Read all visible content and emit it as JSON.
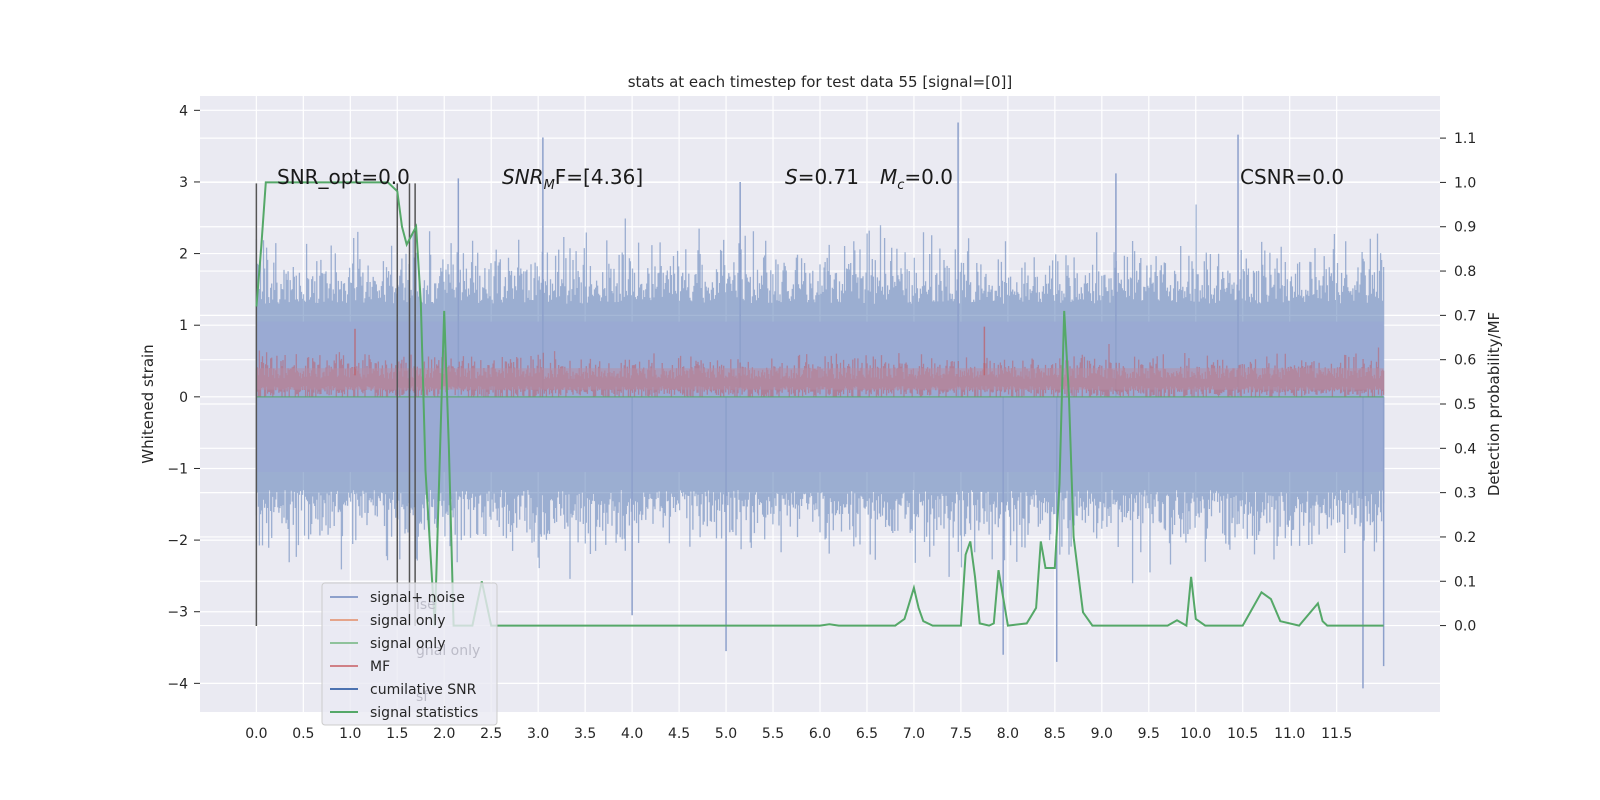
{
  "chart_data": {
    "type": "line",
    "title": "stats at each timestep for test data 55 [signal=[0]]",
    "ylabel": "Whitened strain",
    "y2label": "Detection probability/MF",
    "xlim": [
      -0.6,
      12.6
    ],
    "ylim": [
      -4.4,
      4.2
    ],
    "y2lim": [
      -0.195,
      1.195
    ],
    "x_ticks": [
      "0.0",
      "0.5",
      "1.0",
      "1.5",
      "2.0",
      "2.5",
      "3.0",
      "3.5",
      "4.0",
      "4.5",
      "5.0",
      "5.5",
      "6.0",
      "6.5",
      "7.0",
      "7.5",
      "8.0",
      "8.5",
      "9.0",
      "9.5",
      "10.0",
      "10.5",
      "11.0",
      "11.5"
    ],
    "y_ticks": [
      "4",
      "3",
      "2",
      "1",
      "0",
      "−1",
      "−2",
      "−3",
      "−4"
    ],
    "y2_ticks": [
      "1.1",
      "1.0",
      "0.9",
      "0.8",
      "0.7",
      "0.6",
      "0.5",
      "0.4",
      "0.3",
      "0.2",
      "0.1",
      "0.0"
    ],
    "y2_tick_values": [
      1.1,
      1.0,
      0.9,
      0.8,
      0.7,
      0.6,
      0.5,
      0.4,
      0.3,
      0.2,
      0.1,
      0.0
    ],
    "grid": true,
    "legend_position": "lower-left",
    "colors": {
      "signal_noise": "#4c72b0",
      "signal_only_orange": "#dd8452",
      "signal_only_green": "#55a868",
      "mf": "#c44e52",
      "cumulative_snr": "#4c72b0",
      "signal_statistics": "#55a868",
      "vertical_markers": "#555555",
      "background": "#eaeaf2"
    },
    "annotations": {
      "snr_opt": "SNR_opt=0.0",
      "snr_mf_base": "SNR",
      "snr_mf_sub": "M",
      "snr_mf_rest": "F=[4.36]",
      "s_sym": "S",
      "s_val": "=0.71",
      "mc_sym": "M",
      "mc_sub": "c",
      "mc_val": "=0.0",
      "csnr": "CSNR=0.0"
    },
    "legend": [
      {
        "label": "signal+ noise",
        "color": "#8da0cb"
      },
      {
        "label": "signal only",
        "color": "#e5a48a"
      },
      {
        "label": "signal only",
        "color": "#8fc29b"
      },
      {
        "label": "MF",
        "color": "#d08086"
      },
      {
        "label": "cumilative SNR",
        "color": "#4c72b0"
      },
      {
        "label": "signal statistics",
        "color": "#55a868"
      }
    ],
    "legend_ghosts": [
      "ise",
      "gnal only",
      "sf"
    ],
    "vertical_markers_x": [
      0.0,
      1.5,
      1.63,
      1.69
    ],
    "series": [
      {
        "name": "signal statistics",
        "axis": "right",
        "x": [
          0.0,
          0.05,
          0.1,
          0.2,
          0.4,
          0.8,
          1.2,
          1.4,
          1.5,
          1.55,
          1.6,
          1.65,
          1.7,
          1.75,
          1.8,
          1.9,
          2.0,
          2.05,
          2.1,
          2.2,
          2.3,
          2.4,
          2.45,
          2.5,
          2.6,
          3.0,
          6.0,
          6.1,
          6.2,
          6.8,
          6.9,
          7.0,
          7.05,
          7.1,
          7.2,
          7.5,
          7.55,
          7.6,
          7.65,
          7.7,
          7.8,
          7.85,
          7.9,
          8.0,
          8.2,
          8.3,
          8.35,
          8.4,
          8.5,
          8.55,
          8.6,
          8.65,
          8.7,
          8.8,
          8.9,
          9.7,
          9.8,
          9.9,
          9.95,
          10.0,
          10.1,
          10.2,
          10.5,
          10.7,
          10.8,
          10.9,
          11.1,
          11.3,
          11.35,
          11.4,
          11.5,
          12.0
        ],
        "values": [
          0.72,
          0.85,
          1.0,
          1.0,
          1.0,
          1.0,
          1.0,
          1.0,
          0.98,
          0.9,
          0.86,
          0.88,
          0.9,
          0.73,
          0.35,
          0.0,
          0.71,
          0.4,
          0.0,
          0.0,
          0.0,
          0.1,
          0.05,
          0.0,
          0.0,
          0.0,
          0.0,
          0.003,
          0.0,
          0.0,
          0.015,
          0.085,
          0.04,
          0.01,
          0.0,
          0.0,
          0.16,
          0.19,
          0.11,
          0.005,
          0.0,
          0.005,
          0.125,
          0.0,
          0.005,
          0.04,
          0.19,
          0.13,
          0.13,
          0.32,
          0.71,
          0.52,
          0.2,
          0.03,
          0.0,
          0.0,
          0.012,
          0.0,
          0.11,
          0.015,
          0.0,
          0.0,
          0.0,
          0.075,
          0.06,
          0.01,
          0.0,
          0.05,
          0.01,
          0.0,
          0.0,
          0.0
        ]
      },
      {
        "name": "signal+ noise",
        "axis": "left",
        "x_range": [
          0.0,
          12.0
        ],
        "typical_range": [
          -2.5,
          2.5
        ],
        "peaks": [
          {
            "x": 3.05,
            "y": 3.62
          },
          {
            "x": 7.47,
            "y": 3.83
          },
          {
            "x": 10.45,
            "y": 3.66
          },
          {
            "x": 2.15,
            "y": 3.05
          },
          {
            "x": 9.15,
            "y": 3.12
          },
          {
            "x": 5.15,
            "y": 3.0
          },
          {
            "x": 11.78,
            "y": -4.07
          },
          {
            "x": 12.0,
            "y": -3.76
          },
          {
            "x": 8.52,
            "y": -3.7
          },
          {
            "x": 5.0,
            "y": -3.55
          },
          {
            "x": 7.95,
            "y": -3.6
          },
          {
            "x": 4.0,
            "y": -3.05
          }
        ]
      },
      {
        "name": "MF",
        "axis": "left",
        "x_range": [
          0.0,
          12.0
        ],
        "typical_range": [
          0.0,
          0.75
        ],
        "peaks": [
          {
            "x": 1.05,
            "y": 0.95
          },
          {
            "x": 7.75,
            "y": 0.98
          }
        ]
      },
      {
        "name": "signal only",
        "axis": "left",
        "x_range": [
          0.0,
          12.0
        ],
        "values_constant": 0.0
      }
    ]
  }
}
